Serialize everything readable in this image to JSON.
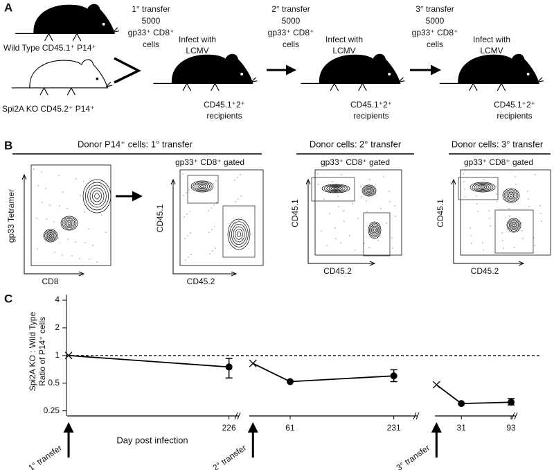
{
  "panel_a": {
    "label": "A",
    "donors": [
      "Wild Type CD45.1⁺ P14⁺",
      "Spi2A KO CD45.2⁺ P14⁺"
    ],
    "transfers": [
      [
        "1° transfer",
        "5000",
        "gp33⁺ CD8⁺",
        "cells"
      ],
      [
        "2° transfer",
        "5000",
        "gp33⁺ CD8⁺",
        "cells"
      ],
      [
        "3° transfer",
        "5000",
        "gp33⁺ CD8⁺",
        "cells"
      ]
    ],
    "infections": [
      [
        "Infect with",
        "LCMV"
      ],
      [
        "Infect with",
        "LCMV"
      ],
      [
        "Infect with",
        "LCMV"
      ]
    ],
    "recipients": [
      [
        "CD45.1⁺2⁺",
        "recipients"
      ],
      [
        "CD45.1⁺2⁺",
        "recipients"
      ],
      [
        "CD45.1⁺2⁺",
        "recipients"
      ]
    ]
  },
  "panel_b": {
    "label": "B",
    "groups": [
      "Donor P14⁺ cells: 1° transfer",
      "Donor cells: 2° transfer",
      "Donor cells: 3° transfer"
    ],
    "plots": [
      {
        "y_label": "gp33 Tetramer",
        "x_label": "CD8"
      },
      {
        "gate_label": "gp33⁺ CD8⁺ gated",
        "y_label": "CD45.1",
        "x_label": "CD45.2"
      },
      {
        "gate_label": "gp33⁺ CD8⁺ gated",
        "y_label": "CD45.1",
        "x_label": "CD45.2"
      },
      {
        "gate_label": "gp33⁺ CD8⁺ gated",
        "y_label": "CD45.1",
        "x_label": "CD45.2"
      }
    ]
  },
  "panel_c": {
    "label": "C"
  },
  "chart_data": {
    "type": "line",
    "y_label": [
      "Spi2A KO : Wild Type",
      "Ratio of P14⁺ cells"
    ],
    "x_label": "Day post infection",
    "log_scale": true,
    "log_base": 2,
    "ylim": [
      0.22,
      4.6
    ],
    "yticks": [
      0.25,
      0.5,
      1,
      2,
      4
    ],
    "reference_line": 1,
    "color": "#000000",
    "segments": [
      {
        "transfer": "1° transfer",
        "xlim": [
          -2,
          240
        ],
        "xticks": [
          226
        ],
        "x": [
          0,
          226
        ],
        "values": [
          1,
          0.75
        ],
        "err_low": [
          null,
          0.57
        ],
        "err_high": [
          null,
          0.93
        ]
      },
      {
        "transfer": "2° transfer",
        "xlim": [
          -6,
          270
        ],
        "xticks": [
          61,
          231
        ],
        "x": [
          0,
          61,
          231
        ],
        "values": [
          0.82,
          0.52,
          0.6
        ],
        "err_low": [
          null,
          null,
          0.52
        ],
        "err_high": [
          null,
          null,
          0.7
        ]
      },
      {
        "transfer": "3° transfer",
        "xlim": [
          -2,
          99
        ],
        "xticks": [
          31,
          93
        ],
        "x": [
          0,
          31,
          93
        ],
        "values": [
          0.48,
          0.3,
          0.31
        ],
        "err_low": [
          null,
          null,
          0.29
        ],
        "err_high": [
          null,
          null,
          0.34
        ]
      }
    ]
  }
}
